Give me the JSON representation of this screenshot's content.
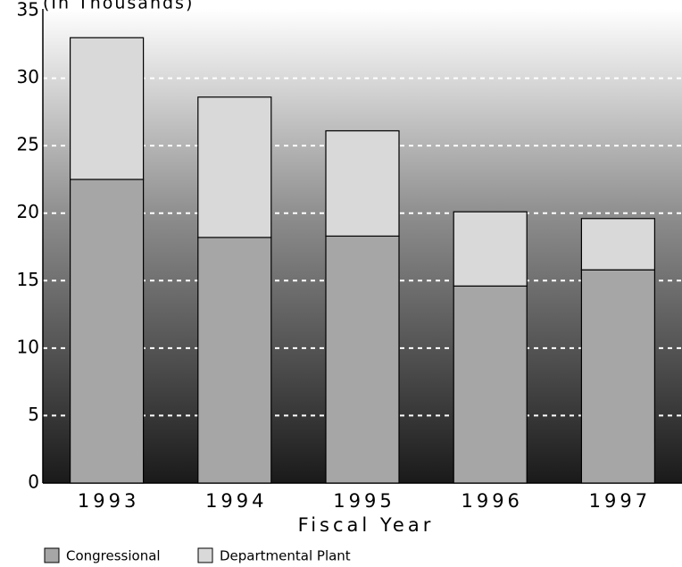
{
  "chart_data": {
    "type": "stacked_bar",
    "title": "(In Thousands)",
    "x_label": "Fiscal Year",
    "categories": [
      "1993",
      "1994",
      "1995",
      "1996",
      "1997"
    ],
    "series": [
      {
        "name": "Congressional",
        "color": "#a6a6a6",
        "values": [
          22.5,
          18.2,
          18.3,
          14.6,
          15.8
        ]
      },
      {
        "name": "Departmental Plant",
        "color": "#d9d9d9",
        "values": [
          10.5,
          10.4,
          7.8,
          5.5,
          3.8
        ]
      }
    ],
    "ylim": [
      0,
      35
    ],
    "yticks": [
      0,
      5,
      10,
      15,
      20,
      25,
      30,
      35
    ],
    "grid": true
  }
}
